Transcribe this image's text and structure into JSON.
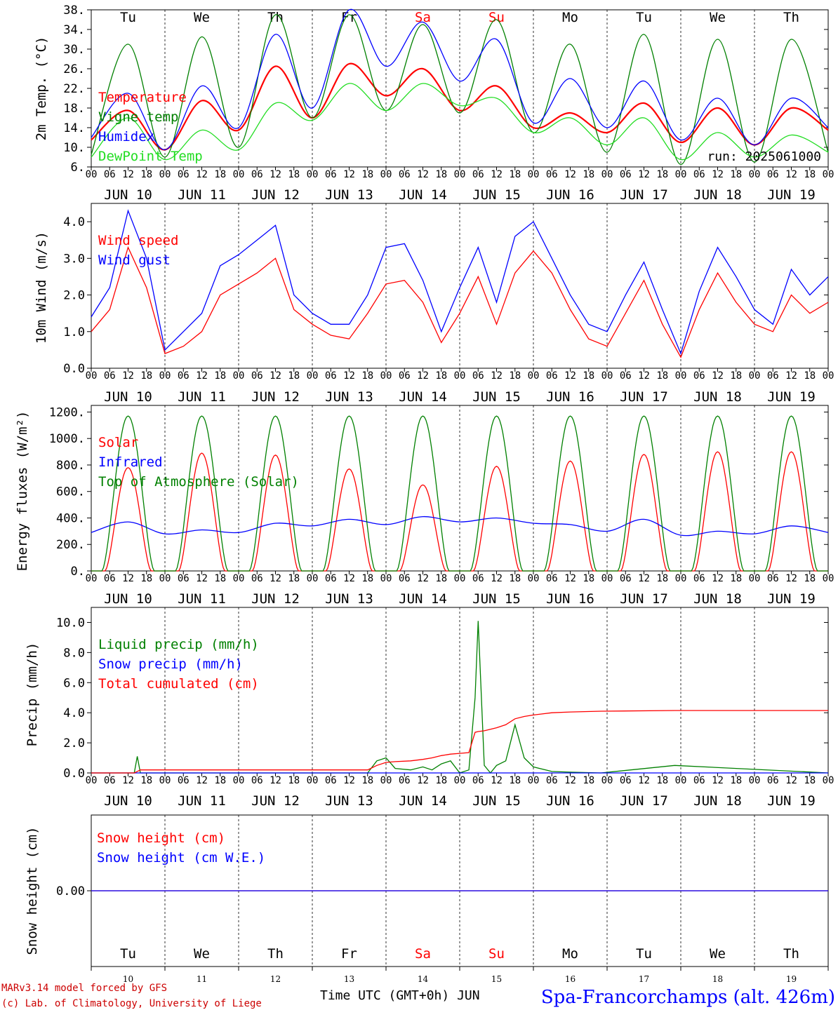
{
  "colors": {
    "red": "#ff0000",
    "green": "#008000",
    "lightgreen": "#22dd22",
    "blue": "#0000ff",
    "black": "#000000",
    "darkred": "#cc0000"
  },
  "days": {
    "labels": [
      "Tu",
      "We",
      "Th",
      "Fr",
      "Sa",
      "Su",
      "Mo",
      "Tu",
      "We",
      "Th"
    ],
    "weekend": [
      false,
      false,
      false,
      false,
      true,
      true,
      false,
      false,
      false,
      false
    ],
    "dates": [
      "JUN 10",
      "JUN 11",
      "JUN 12",
      "JUN 13",
      "JUN 14",
      "JUN 15",
      "JUN 16",
      "JUN 17",
      "JUN 18",
      "JUN 19"
    ],
    "day_numbers": [
      "10",
      "11",
      "12",
      "13",
      "14",
      "15",
      "16",
      "17",
      "18",
      "19"
    ],
    "hour_ticks": [
      "00",
      "06",
      "12",
      "18"
    ],
    "end_hour": "00"
  },
  "footer": {
    "credit_line1": "MARv3.14 model forced by GFS",
    "credit_line2": "(c) Lab. of Climatology, University of Liege",
    "time_label": "Time UTC (GMT+0h) JUN",
    "station": "Spa-Francorchamps (alt. 426m)"
  },
  "chart_data": [
    {
      "type": "line",
      "id": "temp",
      "ylabel": "2m Temp. (°C)",
      "ylim": [
        6,
        38
      ],
      "yticks": [
        "6.",
        "10.",
        "14.",
        "18.",
        "22.",
        "26.",
        "30.",
        "34.",
        "38."
      ],
      "ytick_values": [
        6,
        10,
        14,
        18,
        22,
        26,
        30,
        34,
        38
      ],
      "annotation": "run: 2025061000",
      "x_hours": [
        0,
        12,
        24,
        36,
        48,
        60,
        72,
        84,
        96,
        108,
        120,
        132,
        144,
        156,
        168,
        180,
        192,
        204,
        216,
        228,
        240
      ],
      "series": [
        {
          "name": "Temperature",
          "color": "#ff0000",
          "values": [
            11.5,
            17.5,
            9.5,
            19.5,
            13.5,
            26.5,
            16,
            27,
            20.5,
            26,
            17.5,
            22.5,
            14,
            17,
            13,
            19,
            11,
            18,
            10.5,
            18,
            13.5
          ]
        },
        {
          "name": "Vigne temp",
          "color": "#008000",
          "values": [
            8.5,
            31,
            8,
            32.5,
            10,
            37,
            16,
            37,
            17.5,
            35,
            17,
            36,
            13,
            31,
            9,
            33,
            6.5,
            32,
            7,
            32,
            9
          ]
        },
        {
          "name": "Humidex",
          "color": "#0000ff",
          "values": [
            12,
            21,
            9.5,
            22.5,
            14,
            33,
            18,
            38,
            26.5,
            35.5,
            23.5,
            32,
            15,
            24,
            14,
            23.5,
            11.5,
            20,
            10.5,
            20,
            14
          ]
        },
        {
          "name": "DewPoint Temp",
          "color": "#22dd22",
          "values": [
            8,
            16,
            7.5,
            13.5,
            9.5,
            19,
            15.5,
            23,
            17.5,
            23,
            18.5,
            20,
            13,
            16,
            10.5,
            16,
            7.5,
            13,
            8,
            12.5,
            9
          ]
        }
      ]
    },
    {
      "type": "line",
      "id": "wind",
      "ylabel": "10m Wind (m/s)",
      "ylim": [
        0,
        4.5
      ],
      "yticks": [
        "0.0",
        "1.0",
        "2.0",
        "3.0",
        "4.0"
      ],
      "ytick_values": [
        0,
        1,
        2,
        3,
        4
      ],
      "x_hours": [
        0,
        6,
        12,
        18,
        24,
        30,
        36,
        42,
        48,
        54,
        60,
        66,
        72,
        78,
        84,
        90,
        96,
        102,
        108,
        114,
        120,
        126,
        132,
        138,
        144,
        150,
        156,
        162,
        168,
        174,
        180,
        186,
        192,
        198,
        204,
        210,
        216,
        222,
        228,
        234,
        240
      ],
      "series": [
        {
          "name": "Wind speed",
          "color": "#ff0000",
          "values": [
            1.0,
            1.6,
            3.3,
            2.2,
            0.4,
            0.6,
            1.0,
            2.0,
            2.3,
            2.6,
            3.0,
            1.6,
            1.2,
            0.9,
            0.8,
            1.5,
            2.3,
            2.4,
            1.8,
            0.7,
            1.5,
            2.5,
            1.2,
            2.6,
            3.2,
            2.6,
            1.6,
            0.8,
            0.6,
            1.5,
            2.4,
            1.2,
            0.3,
            1.6,
            2.6,
            1.8,
            1.2,
            1.0,
            2.0,
            1.5,
            1.8
          ]
        },
        {
          "name": "Wind gust",
          "color": "#0000ff",
          "values": [
            1.4,
            2.2,
            4.3,
            3.0,
            0.5,
            1.0,
            1.5,
            2.8,
            3.1,
            3.5,
            3.9,
            2.0,
            1.5,
            1.2,
            1.2,
            2.0,
            3.3,
            3.4,
            2.4,
            1.0,
            2.2,
            3.3,
            1.8,
            3.6,
            4.0,
            3.0,
            2.0,
            1.2,
            1.0,
            2.0,
            2.9,
            1.6,
            0.4,
            2.1,
            3.3,
            2.5,
            1.6,
            1.2,
            2.7,
            2.0,
            2.5
          ]
        }
      ]
    },
    {
      "type": "line",
      "id": "energy",
      "ylabel": "Energy fluxes (W/m²)",
      "ylim": [
        0,
        1250
      ],
      "yticks": [
        "0.",
        "200.",
        "400.",
        "600.",
        "800.",
        "1000.",
        "1200."
      ],
      "ytick_values": [
        0,
        200,
        400,
        600,
        800,
        1000,
        1200
      ],
      "x_hours": [
        0,
        12,
        24,
        36,
        48,
        60,
        72,
        84,
        96,
        108,
        120,
        132,
        144,
        156,
        168,
        180,
        192,
        204,
        216,
        228,
        240
      ],
      "solar_peaks": [
        780,
        890,
        875,
        770,
        650,
        790,
        830,
        880,
        900,
        900
      ],
      "toa_peak": 1170,
      "series": [
        {
          "name": "Solar",
          "color": "#ff0000",
          "values": [
            0,
            780,
            0,
            890,
            0,
            875,
            0,
            770,
            0,
            650,
            0,
            790,
            0,
            830,
            0,
            880,
            0,
            900,
            0,
            900,
            0
          ]
        },
        {
          "name": "Infrared",
          "color": "#0000ff",
          "values": [
            290,
            370,
            280,
            310,
            290,
            360,
            340,
            390,
            350,
            410,
            370,
            400,
            360,
            350,
            300,
            390,
            270,
            300,
            280,
            340,
            290
          ]
        },
        {
          "name": "Top of Atmosphere (Solar)",
          "color": "#008000",
          "values": [
            0,
            1170,
            0,
            1170,
            0,
            1170,
            0,
            1170,
            0,
            1170,
            0,
            1170,
            0,
            1170,
            0,
            1170,
            0,
            1170,
            0,
            1170,
            0
          ]
        }
      ]
    },
    {
      "type": "line",
      "id": "precip",
      "ylabel": "Precip (mm/h)",
      "ylim": [
        0,
        11
      ],
      "yticks": [
        "0.0",
        "2.0",
        "4.0",
        "6.0",
        "8.0",
        "10.0"
      ],
      "ytick_values": [
        0,
        2,
        4,
        6,
        8,
        10
      ],
      "x_hours": [
        0,
        14,
        15,
        16,
        24,
        90,
        93,
        96,
        99,
        104,
        108,
        111,
        114,
        117,
        120,
        123,
        125,
        126,
        128,
        130,
        132,
        135,
        138,
        141,
        144,
        150,
        156,
        166,
        190,
        240
      ],
      "series": [
        {
          "name": "Liquid precip (mm/h)",
          "color": "#008000",
          "values": [
            0,
            0,
            1.1,
            0,
            0,
            0,
            0.8,
            1.0,
            0.3,
            0.2,
            0.4,
            0.2,
            0.6,
            0.8,
            0,
            0.2,
            5.0,
            10.1,
            0.5,
            0,
            0.5,
            0.8,
            3.2,
            1.0,
            0.4,
            0.1,
            0.05,
            0,
            0.5,
            0
          ]
        },
        {
          "name": "Snow precip (mm/h)",
          "color": "#0000ff",
          "values": [
            0,
            0,
            0,
            0,
            0,
            0,
            0,
            0,
            0,
            0,
            0,
            0,
            0,
            0,
            0,
            0,
            0,
            0,
            0,
            0,
            0,
            0,
            0,
            0,
            0,
            0,
            0,
            0,
            0,
            0
          ]
        },
        {
          "name": "Total cumulated (cm)",
          "color": "#ff0000",
          "values": [
            0,
            0,
            0.1,
            0.2,
            0.2,
            0.2,
            0.5,
            0.7,
            0.75,
            0.8,
            0.9,
            1.0,
            1.15,
            1.25,
            1.3,
            1.35,
            2.7,
            2.75,
            2.8,
            2.9,
            3.0,
            3.2,
            3.6,
            3.75,
            3.85,
            4.0,
            4.05,
            4.1,
            4.15,
            4.15
          ]
        }
      ]
    },
    {
      "type": "line",
      "id": "snow",
      "ylabel": "Snow height (cm)",
      "ylim": [
        -1,
        1
      ],
      "yticks": [
        "0.00"
      ],
      "ytick_values": [
        0
      ],
      "x_hours": [
        0,
        240
      ],
      "series": [
        {
          "name": "Snow height (cm)",
          "color": "#ff0000",
          "values": [
            0,
            0
          ]
        },
        {
          "name": "Snow height (cm W.E.)",
          "color": "#0000ff",
          "values": [
            0,
            0
          ]
        }
      ]
    }
  ]
}
